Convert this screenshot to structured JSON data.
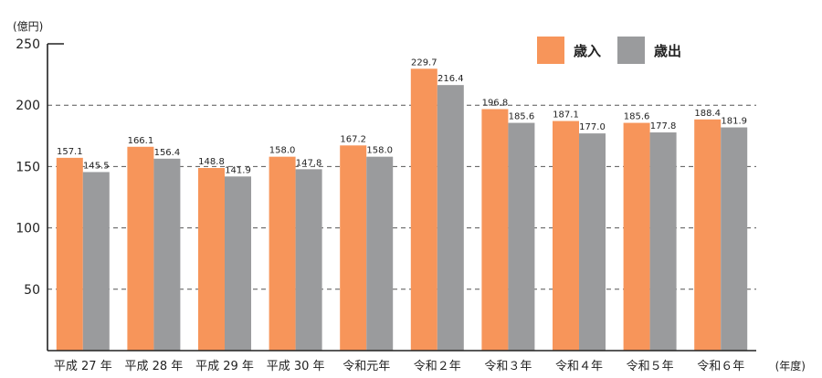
{
  "chart_data": {
    "type": "bar",
    "y_unit": "(億円)",
    "x_unit": "(年度)",
    "categories": [
      "平成 27 年",
      "平成 28 年",
      "平成 29 年",
      "平成 30 年",
      "令和元年",
      "令和２年",
      "令和３年",
      "令和４年",
      "令和５年",
      "令和６年"
    ],
    "series": [
      {
        "name": "歳入",
        "color": "#F7955A",
        "values": [
          157.1,
          166.1,
          148.8,
          158.0,
          167.2,
          229.7,
          196.8,
          187.1,
          185.6,
          188.4
        ]
      },
      {
        "name": "歳出",
        "color": "#9A9B9D",
        "values": [
          145.5,
          156.4,
          141.9,
          147.8,
          158.0,
          216.4,
          185.6,
          177.0,
          177.8,
          181.9
        ]
      }
    ],
    "ylim": [
      0,
      250
    ],
    "yticks": [
      50,
      100,
      150,
      200,
      250
    ],
    "grid": true,
    "legend_position": "top-right"
  }
}
